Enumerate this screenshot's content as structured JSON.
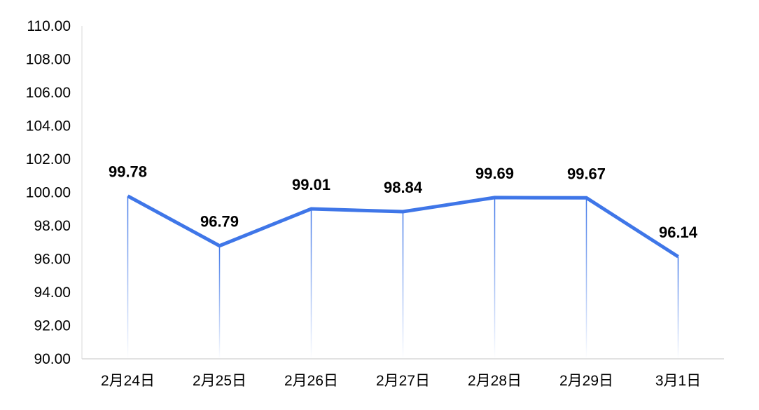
{
  "chart_data": {
    "type": "line",
    "categories": [
      "2月24日",
      "2月25日",
      "2月26日",
      "2月27日",
      "2月28日",
      "2月29日",
      "3月1日"
    ],
    "series": [
      {
        "values": [
          99.78,
          96.79,
          99.01,
          98.84,
          99.69,
          99.67,
          96.14
        ],
        "data_labels": [
          "99.78",
          "96.79",
          "99.01",
          "98.84",
          "99.69",
          "99.67",
          "96.14"
        ],
        "color": "#3f76e8"
      }
    ],
    "y_ticks": [
      "90.00",
      "92.00",
      "94.00",
      "96.00",
      "98.00",
      "100.00",
      "102.00",
      "104.00",
      "106.00",
      "108.00",
      "110.00"
    ],
    "ylim": [
      90,
      110
    ],
    "grid": false,
    "legend": "none",
    "drop_lines": true,
    "axis_color": "#d9d9d9"
  }
}
